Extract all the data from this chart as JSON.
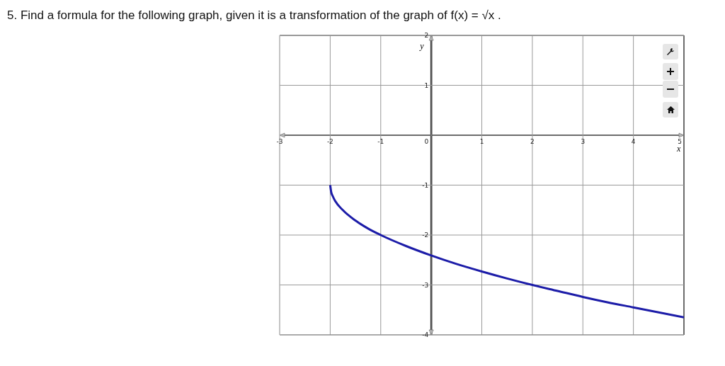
{
  "chart_data": {
    "type": "line",
    "title": "5. Find a formula for the following graph, given it is a transformation of the graph of f(x) = √x .",
    "xlabel": "x",
    "ylabel": "y",
    "series": [
      {
        "color": "#1c1ca8",
        "x": [
          -2,
          -1.98,
          -1.95,
          -1.9,
          -1.75,
          -1.5,
          -1.25,
          -1,
          -0.5,
          0,
          0.5,
          1,
          1.5,
          2,
          2.5,
          3,
          3.5,
          4,
          4.5,
          5
        ],
        "values": [
          -1,
          -1.14,
          -1.22,
          -1.32,
          -1.5,
          -1.71,
          -1.87,
          -2,
          -2.22,
          -2.41,
          -2.58,
          -2.73,
          -2.87,
          -3,
          -3.12,
          -3.24,
          -3.35,
          -3.45,
          -3.55,
          -3.65
        ]
      }
    ],
    "xlim": [
      -3,
      5
    ],
    "ylim": [
      -4,
      2
    ],
    "xticks": [
      -3,
      -2,
      -1,
      0,
      1,
      2,
      3,
      4,
      5
    ],
    "yticks": [
      -4,
      -3,
      -2,
      -1,
      {
        "value": 0,
        "label": null
      },
      1,
      2
    ],
    "grid": true,
    "marker": "none",
    "line_style": "solid",
    "legend": false
  }
}
